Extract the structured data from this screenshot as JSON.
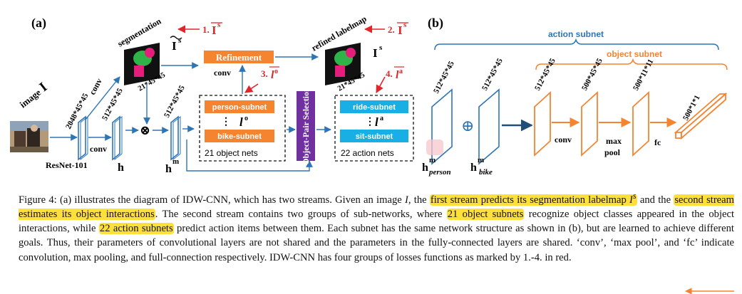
{
  "colors": {
    "accent_red": "#e0262c",
    "orange": "#f58431",
    "cyan": "#19aee4",
    "blue_frame": "#2e75b6",
    "purple": "#7030a0",
    "highlight": "#ffdf3a"
  },
  "panel_a": {
    "label": "(a)",
    "image_label": "image",
    "image_var": "I",
    "resnet": "ResNet-101",
    "conv_lower": "conv",
    "conv_upper": "conv",
    "conv_refine": "conv",
    "dim_2048": "2048*45*45",
    "dim_512_h": "512*45*45",
    "dim_512_hm": "512*45*45",
    "h": "h",
    "hm_base": "h",
    "hm_sup": "m",
    "segmentation_label": "segmentation",
    "seg_dim": "21*45*45",
    "seg_var": "I",
    "seg_sup": "s",
    "refined_label": "refined labelmap",
    "refined_dim": "21*45*45",
    "refined_var": "I",
    "refined_sup": "s",
    "refinement_box": "Refinement",
    "loss_1": "1.",
    "loss_1_var": "I",
    "loss_1_sup": "s",
    "loss_2": "2.",
    "loss_2_var": "I",
    "loss_2_sup": "s",
    "loss_3": "3.",
    "loss_3_var": "l",
    "loss_3_sup": "o",
    "loss_4": "4.",
    "loss_4_var": "l",
    "loss_4_sup": "a",
    "person_subnet": "person-subnet",
    "bike_subnet": "bike-subnet",
    "lo_var": "l",
    "lo_sup": "o",
    "object_nets": "21 object nets",
    "object_pair": "Object-Pair Selection",
    "ride_subnet": "ride-subnet",
    "sit_subnet": "sit-subnet",
    "la_var": "l",
    "la_sup": "a",
    "action_nets": "22 action nets",
    "otimes": "⊗"
  },
  "panel_b": {
    "label": "(b)",
    "action_subnet": "action subnet",
    "object_subnet": "object subnet",
    "dim_person": "512*45*45",
    "dim_bike": "512*45*45",
    "dim_3": "512*45*45",
    "dim_4": "500*45*45",
    "dim_5": "500*11*11",
    "dim_6": "500*1*1",
    "h_person_base": "h",
    "h_person_sup": "m",
    "h_person_sub": "person",
    "h_bike_base": "h",
    "h_bike_sup": "m",
    "h_bike_sub": "bike",
    "conv": "conv",
    "max_pool_1": "max",
    "max_pool_2": "pool",
    "fc": "fc",
    "oplus": "⊕"
  },
  "caption": {
    "part1": "Figure 4: (a) illustrates the diagram of IDW-CNN, which has two streams. Given an image ",
    "var_I": "I",
    "part2": ", the ",
    "hl1": "first stream predicts its segmentation labelmap ",
    "var_Is": "I",
    "var_Is_sup": "s",
    "part3": " and the ",
    "hl2": "second stream estimates its object interactions",
    "part4": ". The second stream contains two groups of sub-networks, where ",
    "hl3": "21 object subnets",
    "part5": " recognize object classes appeared in the object interactions, while ",
    "hl4": "22 action subnets",
    "part6": " predict action items between them. Each subnet has the same network structure as shown in (b), but are learned to achieve different goals. Thus, their parameters of convolutional layers are not shared and the parameters in the fully-connected layers are shared. ‘conv’, ‘max pool’, and ‘fc’ indicate convolution, max pooling, and full-connection respectively. IDW-CNN has four groups of losses functions as marked by 1.-4. in red."
  }
}
